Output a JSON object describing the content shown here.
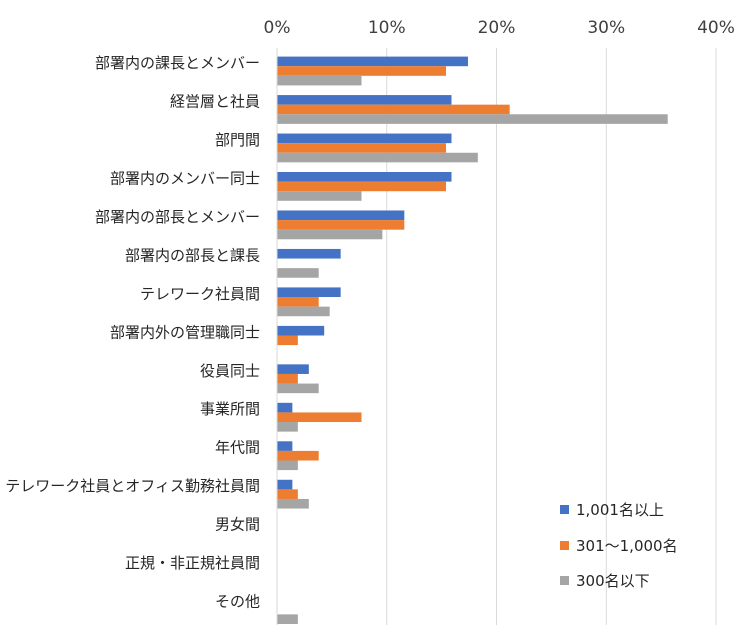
{
  "chart_data": {
    "type": "bar",
    "orientation": "horizontal",
    "title": "",
    "xlabel": "",
    "ylabel": "",
    "xlim": [
      0,
      40
    ],
    "xticks": [
      "0%",
      "10%",
      "20%",
      "30%",
      "40%"
    ],
    "xtick_values": [
      0,
      10,
      20,
      30,
      40
    ],
    "grid": true,
    "legend_position": "bottom-right",
    "categories": [
      "部署内の課長とメンバー",
      "経営層と社員",
      "部門間",
      "部署内のメンバー同士",
      "部署内の部長とメンバー",
      "部署内の部長と課長",
      "テレワーク社員間",
      "部署内外の管理職同士",
      "役員同士",
      "事業所間",
      "年代間",
      "テレワーク社員とオフィス勤務社員間",
      "男女間",
      "正規・非正規社員間",
      "その他"
    ],
    "series": [
      {
        "name": "1,001名以上",
        "color": "#4472C4",
        "values": [
          17.4,
          15.9,
          15.9,
          15.9,
          11.6,
          5.8,
          5.8,
          4.3,
          2.9,
          1.4,
          1.4,
          1.4,
          0,
          0,
          0
        ]
      },
      {
        "name": "301〜1,000名",
        "color": "#ED7D31",
        "values": [
          15.4,
          21.2,
          15.4,
          15.4,
          11.6,
          0,
          3.8,
          1.9,
          1.9,
          7.7,
          3.8,
          1.9,
          0,
          0,
          0
        ]
      },
      {
        "name": "300名以下",
        "color": "#A5A5A5",
        "values": [
          7.7,
          35.6,
          18.3,
          7.7,
          9.6,
          3.8,
          4.8,
          0,
          3.8,
          1.9,
          1.9,
          2.9,
          0,
          0,
          1.9
        ]
      }
    ]
  }
}
